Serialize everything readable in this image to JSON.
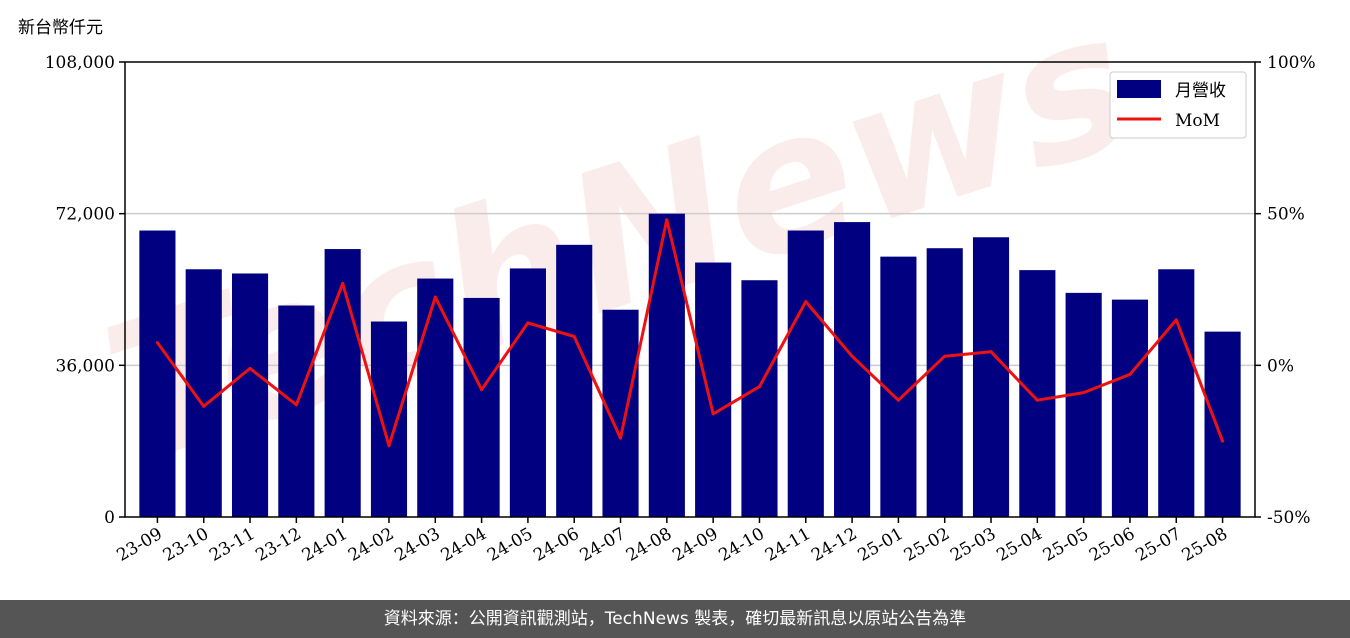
{
  "unit_label": "新台幣仟元",
  "footer_text": "資料來源：公開資訊觀測站，TechNews 製表，確切最新訊息以原站公告為準",
  "watermark_text": "TechNews",
  "colors": {
    "bar": "#000080",
    "line": "#ee1111",
    "grid": "#cccccc",
    "footer_bg": "#555555"
  },
  "chart_data": {
    "type": "bar",
    "categories": [
      "23-09",
      "23-10",
      "23-11",
      "23-12",
      "24-01",
      "24-02",
      "24-03",
      "24-04",
      "24-05",
      "24-06",
      "24-07",
      "24-08",
      "24-09",
      "24-10",
      "24-11",
      "24-12",
      "25-01",
      "25-02",
      "25-03",
      "25-04",
      "25-05",
      "25-06",
      "25-07",
      "25-08"
    ],
    "series": [
      {
        "name": "月營收",
        "type": "bar",
        "axis": "left",
        "values": [
          68000,
          58800,
          57800,
          50200,
          63600,
          46400,
          56600,
          52000,
          59000,
          64600,
          49200,
          72000,
          60400,
          56200,
          68000,
          70000,
          61800,
          63800,
          66400,
          58600,
          53200,
          51600,
          58800,
          44000
        ]
      },
      {
        "name": "MoM",
        "type": "line",
        "axis": "right",
        "values": [
          7.5,
          -13.5,
          -1.0,
          -13.0,
          27.0,
          -26.5,
          22.5,
          -8.0,
          14.0,
          9.5,
          -24.0,
          48.0,
          -16.0,
          -7.0,
          21.0,
          3.0,
          -11.5,
          3.0,
          4.5,
          -11.5,
          -9.0,
          -3.0,
          15.0,
          -25.0
        ]
      }
    ],
    "left_axis": {
      "ylim": [
        0,
        108000
      ],
      "ticks": [
        "0",
        "36,000",
        "72,000",
        "108,000"
      ],
      "tick_values": [
        0,
        36000,
        72000,
        108000
      ]
    },
    "right_axis": {
      "ylim": [
        -50,
        100
      ],
      "ticks": [
        "-50%",
        "0%",
        "50%",
        "100%"
      ],
      "tick_values": [
        -50,
        0,
        50,
        100
      ]
    },
    "grid": "horizontal",
    "legend_placement": "top-right",
    "legend": [
      "月營收",
      "MoM"
    ]
  }
}
